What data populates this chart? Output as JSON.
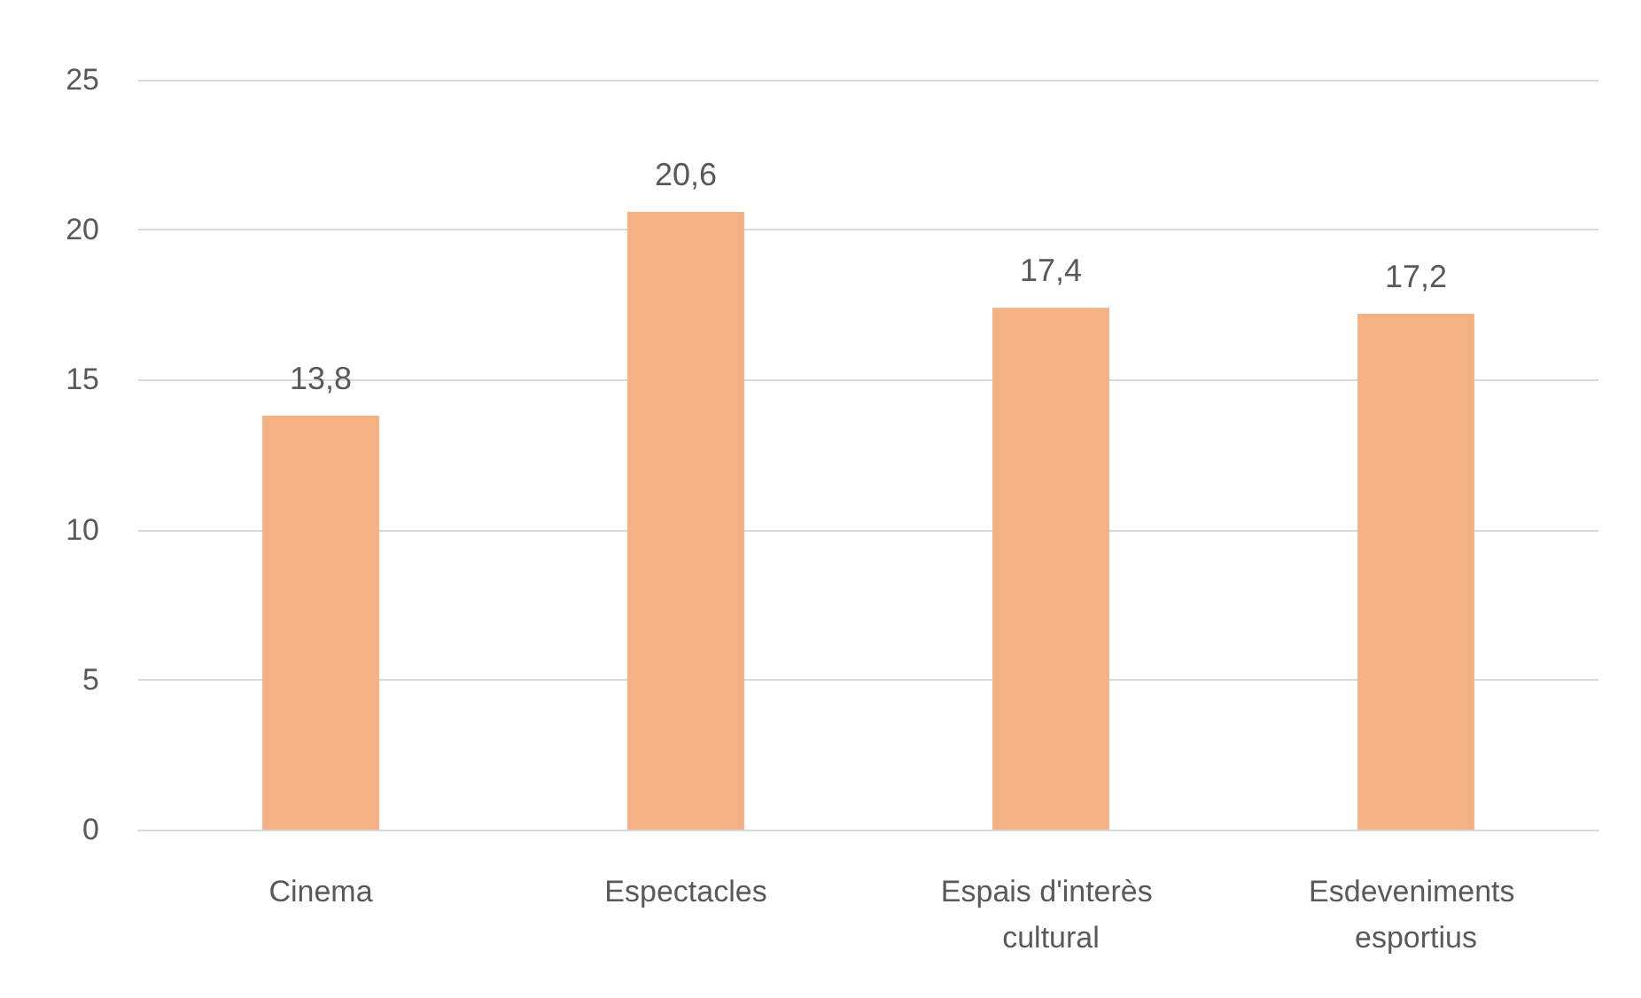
{
  "chart_data": {
    "type": "bar",
    "categories": [
      "Cinema",
      "Espectacles",
      "Espais d'interès cultural",
      "Esdeveniments esportius"
    ],
    "values": [
      13.8,
      20.6,
      17.4,
      17.2
    ],
    "color": "#f4b183",
    "value_labels": [
      "13,8",
      "20,6",
      "17,4",
      "17,2"
    ],
    "ylim": [
      0,
      25
    ],
    "yticks": [
      0,
      5,
      10,
      15,
      20,
      25
    ],
    "grid": "y"
  }
}
